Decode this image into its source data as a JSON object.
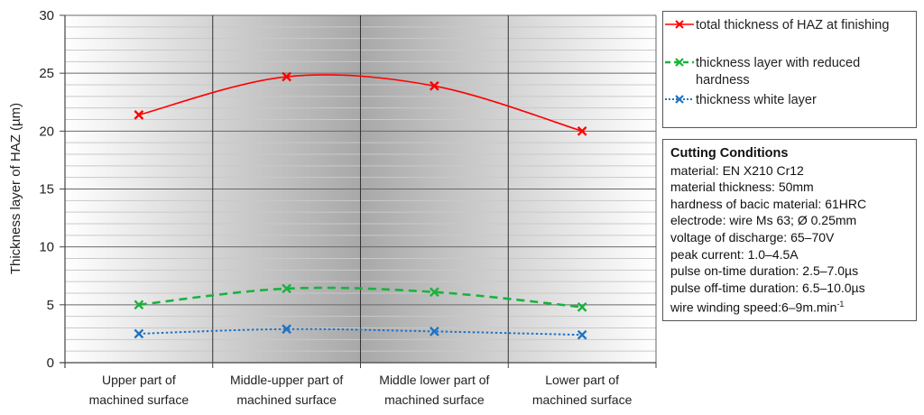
{
  "chart_data": {
    "type": "line",
    "categories": [
      [
        "Upper part of",
        "machined surface"
      ],
      [
        "Middle-upper part of",
        "machined surface"
      ],
      [
        "Middle lower part of",
        "machined surface"
      ],
      [
        "Lower part of",
        "machined surface"
      ]
    ],
    "ylabel": "Thickness layer of HAZ   (µm)",
    "ylim": [
      0,
      30
    ],
    "yticks": [
      0,
      5,
      10,
      15,
      20,
      25,
      30
    ],
    "grid": true,
    "legend_position": "right",
    "series": [
      {
        "name": "total thickness of HAZ at finishing",
        "values": [
          21.4,
          24.7,
          23.9,
          20.0
        ],
        "color": "#ff0000",
        "style": "solid",
        "marker": "x"
      },
      {
        "name": "thickness layer with reduced hardness",
        "values": [
          5.0,
          6.4,
          6.1,
          4.8
        ],
        "color": "#19b33c",
        "style": "dashed",
        "marker": "x"
      },
      {
        "name": "thickness white layer",
        "values": [
          2.5,
          2.9,
          2.7,
          2.4
        ],
        "color": "#1f72c4",
        "style": "dotted",
        "marker": "x"
      }
    ]
  },
  "conditions": {
    "title": "Cutting Conditions",
    "lines": [
      "material: EN X210 Cr12",
      "material thickness: 50mm",
      "hardness of bacic material:  61HRC",
      "electrode: wire Ms 63; Ø 0.25mm",
      "voltage of discharge:  65–70V",
      "peak current: 1.0–4.5A",
      "pulse on-time duration: 2.5–7.0µs",
      "pulse off-time duration: 6.5–10.0µs"
    ],
    "last_line_prefix": "wire winding speed:6–9m.min",
    "last_line_sup": "-1"
  }
}
